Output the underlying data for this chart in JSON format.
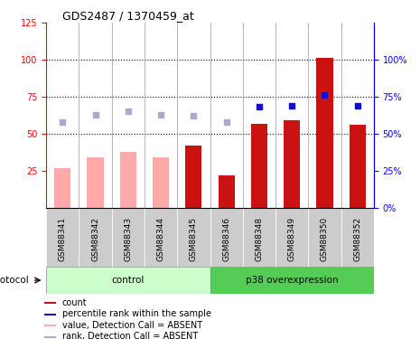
{
  "title": "GDS2487 / 1370459_at",
  "samples": [
    "GSM88341",
    "GSM88342",
    "GSM88343",
    "GSM88344",
    "GSM88345",
    "GSM88346",
    "GSM88348",
    "GSM88349",
    "GSM88350",
    "GSM88352"
  ],
  "count_values": [
    null,
    null,
    null,
    null,
    42,
    22,
    57,
    59,
    101,
    56
  ],
  "count_absent_values": [
    27,
    34,
    38,
    34,
    null,
    null,
    null,
    null,
    null,
    null
  ],
  "rank_values": [
    null,
    null,
    null,
    null,
    null,
    null,
    68,
    69,
    76,
    69
  ],
  "rank_absent_values": [
    58,
    63,
    65,
    63,
    62,
    58,
    null,
    null,
    null,
    null
  ],
  "left_ylim": [
    0,
    125
  ],
  "left_yticks": [
    25,
    50,
    75,
    100,
    125
  ],
  "right_yticks_vals": [
    0,
    25,
    50,
    75,
    100
  ],
  "right_yticks_pos": [
    0,
    25,
    50,
    75,
    100
  ],
  "dotted_lines": [
    50,
    75,
    100
  ],
  "control_color_light": "#ccffcc",
  "p38_color_dark": "#55cc55",
  "bar_color_red": "#cc1111",
  "bar_color_pink": "#ffaaaa",
  "dot_color_blue": "#1111cc",
  "dot_color_light_blue": "#aaaacc",
  "xticklabel_bg": "#cccccc",
  "group_label_control": "control",
  "group_label_p38": "p38 overexpression",
  "protocol_label": "protocol",
  "legend_items": [
    {
      "label": "count",
      "color": "#cc1111"
    },
    {
      "label": "percentile rank within the sample",
      "color": "#1111cc"
    },
    {
      "label": "value, Detection Call = ABSENT",
      "color": "#ffaaaa"
    },
    {
      "label": "rank, Detection Call = ABSENT",
      "color": "#aaaacc"
    }
  ]
}
